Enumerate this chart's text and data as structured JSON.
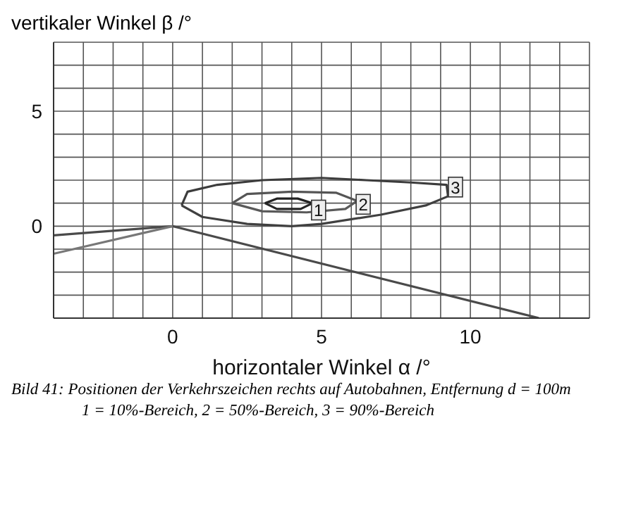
{
  "chart_data": {
    "type": "line",
    "xlabel": "horizontaler Winkel α /°",
    "ylabel": "vertikaler Winkel β /°",
    "xlim": [
      -4,
      14
    ],
    "ylim": [
      -4,
      8
    ],
    "xticks": [
      {
        "value": -3,
        "label": null
      },
      {
        "value": -2,
        "label": null
      },
      {
        "value": -1,
        "label": null
      },
      0,
      {
        "value": 1,
        "label": null
      },
      {
        "value": 2,
        "label": null
      },
      {
        "value": 3,
        "label": null
      },
      {
        "value": 4,
        "label": null
      },
      5,
      {
        "value": 6,
        "label": null
      },
      {
        "value": 7,
        "label": null
      },
      {
        "value": 8,
        "label": null
      },
      {
        "value": 9,
        "label": null
      },
      10,
      {
        "value": 11,
        "label": null
      },
      {
        "value": 12,
        "label": null
      },
      {
        "value": 13,
        "label": null
      }
    ],
    "yticks": [
      {
        "value": -3,
        "label": null
      },
      {
        "value": -2,
        "label": null
      },
      {
        "value": -1,
        "label": null
      },
      0,
      {
        "value": 1,
        "label": null
      },
      {
        "value": 2,
        "label": null
      },
      {
        "value": 3,
        "label": null
      },
      {
        "value": 4,
        "label": null
      },
      5,
      {
        "value": 6,
        "label": null
      },
      {
        "value": 7,
        "label": null
      }
    ],
    "grid": true,
    "marker": "none",
    "line_style": "solid",
    "series": [
      {
        "color": "#3c3c3c",
        "x": [
          0.3,
          0.5,
          1.5,
          3,
          5,
          6.5,
          8,
          9.2,
          9.25
        ],
        "values": [
          0.9,
          1.5,
          1.8,
          2.0,
          2.1,
          2.0,
          1.9,
          1.8,
          1.3
        ]
      },
      {
        "color": "#404040",
        "x": [
          0.3,
          1,
          2.5,
          4,
          5,
          7,
          8.5,
          9.25
        ],
        "values": [
          0.9,
          0.4,
          0.1,
          0,
          0.1,
          0.5,
          0.9,
          1.3
        ]
      },
      {
        "color": "#555555",
        "x": [
          2.0,
          2.5,
          4,
          5.5,
          6.2
        ],
        "values": [
          1.0,
          1.4,
          1.5,
          1.45,
          1.1
        ]
      },
      {
        "color": "#5a5a5a",
        "x": [
          2.0,
          3,
          4.5,
          5.8,
          6.2
        ],
        "values": [
          1.0,
          0.65,
          0.6,
          0.75,
          1.1
        ]
      },
      {
        "color": "#222222",
        "x": [
          3.1,
          3.5,
          4.2,
          4.7
        ],
        "values": [
          1.0,
          1.2,
          1.2,
          1.0
        ]
      },
      {
        "color": "#262626",
        "x": [
          3.1,
          3.5,
          4.3,
          4.7
        ],
        "values": [
          1.0,
          0.75,
          0.75,
          1.0
        ]
      },
      {
        "color": "#4a4a4a",
        "x": [
          -4,
          0,
          12.3
        ],
        "values": [
          -0.4,
          0,
          -4
        ]
      },
      {
        "color": "#777777",
        "x": [
          -4,
          0
        ],
        "values": [
          -1.2,
          0
        ]
      }
    ],
    "annotations": [
      {
        "text": "1",
        "x": 4.9,
        "y": 0.7
      },
      {
        "text": "2",
        "x": 6.4,
        "y": 0.95
      },
      {
        "text": "3",
        "x": 9.5,
        "y": 1.7
      },
      "Bild 41:  Positionen der Verkehrszeichen rechts auf Autobahnen, Entfernung d = 100m",
      "1 = 10%-Bereich, 2 = 50%-Bereich, 3 = 90%-Bereich"
    ]
  }
}
